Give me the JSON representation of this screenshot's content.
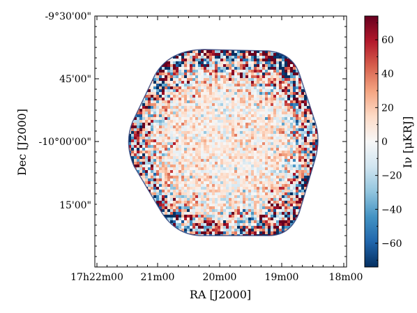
{
  "chart_data": {
    "type": "heatmap",
    "title": "",
    "xlabel": "RA [J2000]",
    "ylabel": "Dec [J2000]",
    "x_ticks": [
      "17h22m00",
      "21m00",
      "20m00",
      "19m00",
      "18m00"
    ],
    "y_ticks": [
      "-9°30'00\"",
      "45'00\"",
      "-10°00'00\"",
      "15'00\""
    ],
    "colorbar": {
      "label": "I_ν [μK_RJ]",
      "label_visible": "Iν [μKRJ]",
      "range": [
        -74,
        74
      ],
      "ticks": [
        60,
        40,
        20,
        0,
        -20,
        -40,
        -60
      ],
      "tick_labels": [
        "60",
        "40",
        "20",
        "0",
        "−20",
        "−40",
        "−60"
      ],
      "colormap": "RdBu_r",
      "colors": [
        "#053061",
        "#2166ac",
        "#4393c3",
        "#92c5de",
        "#d1e5f0",
        "#f7f7f7",
        "#fddbc7",
        "#f4a582",
        "#d6604d",
        "#b2182b",
        "#67001f"
      ]
    },
    "map_shape": "hexagon",
    "grid": false
  }
}
